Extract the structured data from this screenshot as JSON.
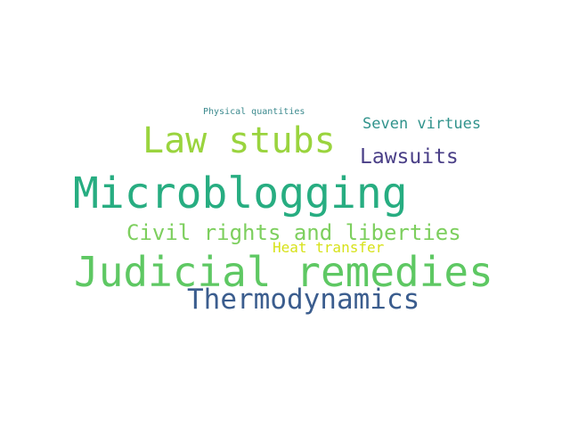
{
  "word_cloud": {
    "background_color": "#ffffff",
    "words": [
      {
        "text": "Physical quantities",
        "color": "#3c8a8e"
      },
      {
        "text": "Seven virtues",
        "color": "#31938c"
      },
      {
        "text": "Law stubs",
        "color": "#9ad43e"
      },
      {
        "text": "Lawsuits",
        "color": "#4a3f87"
      },
      {
        "text": "Microblogging",
        "color": "#27ad81"
      },
      {
        "text": "Civil rights and liberties",
        "color": "#7dcf5e"
      },
      {
        "text": "Heat transfer",
        "color": "#d7e21a"
      },
      {
        "text": "Judicial remedies",
        "color": "#5ec863"
      },
      {
        "text": "Thermodynamics",
        "color": "#3b5d8e"
      }
    ]
  }
}
